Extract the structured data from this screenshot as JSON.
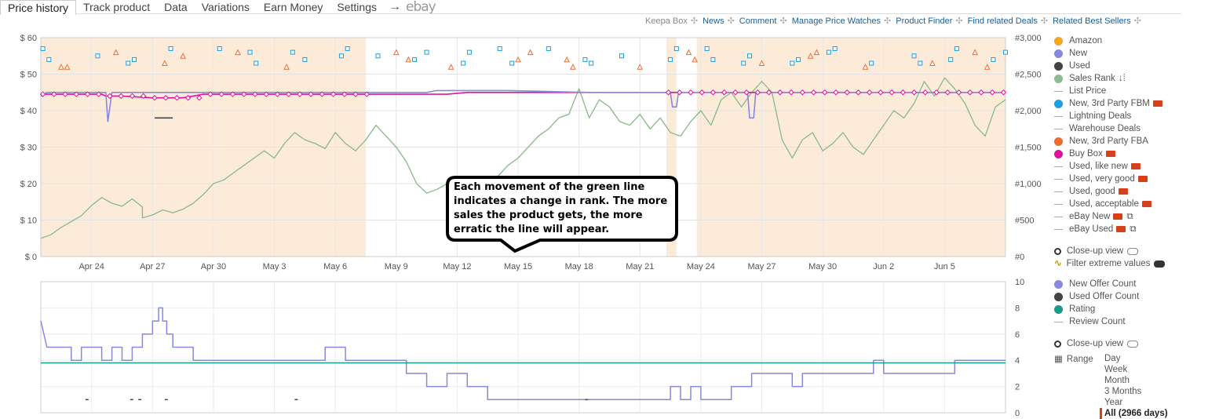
{
  "tabs": [
    {
      "label": "Price history",
      "active": true
    },
    {
      "label": "Track product"
    },
    {
      "label": "Data"
    },
    {
      "label": "Variations"
    },
    {
      "label": "Earn Money"
    },
    {
      "label": "Settings"
    }
  ],
  "tab_arrow": "→",
  "ebay_label": "ebay",
  "toplinks": {
    "keepa_box": "Keepa Box",
    "items": [
      "News",
      "Comment",
      "Manage Price Watches",
      "Product Finder",
      "Find related Deals",
      "Related Best Sellers"
    ]
  },
  "legend_top": [
    {
      "label": "Amazon",
      "type": "dot",
      "color": "#f5a623"
    },
    {
      "label": "New",
      "type": "dot",
      "color": "#8888dd"
    },
    {
      "label": "Used",
      "type": "dot",
      "color": "#444444"
    },
    {
      "label": "Sales Rank",
      "type": "dot",
      "color": "#8fbc8f",
      "suffix": "↓⁞"
    },
    {
      "label": "List Price",
      "type": "dash"
    },
    {
      "label": "New, 3rd Party FBM",
      "type": "dot",
      "color": "#1a9fe0",
      "truck": true
    },
    {
      "label": "Lightning Deals",
      "type": "dash"
    },
    {
      "label": "Warehouse Deals",
      "type": "dash"
    },
    {
      "label": "New, 3rd Party FBA",
      "type": "dot",
      "color": "#f26b2e"
    },
    {
      "label": "Buy Box",
      "type": "dot",
      "color": "#e0139c",
      "truck": true
    },
    {
      "label": "Used, like new",
      "type": "dash",
      "truck": true
    },
    {
      "label": "Used, very good",
      "type": "dash",
      "truck": true
    },
    {
      "label": "Used, good",
      "type": "dash",
      "truck": true
    },
    {
      "label": "Used, acceptable",
      "type": "dash",
      "truck": true
    },
    {
      "label": "eBay New",
      "type": "dash",
      "truck": true,
      "ext": true
    },
    {
      "label": "eBay Used",
      "type": "dash",
      "truck": true,
      "ext": true
    }
  ],
  "closeup_label": "Close-up view",
  "filter_label": "Filter extreme values",
  "legend_bottom": [
    {
      "label": "New Offer Count",
      "type": "dot",
      "color": "#8888dd"
    },
    {
      "label": "Used Offer Count",
      "type": "dot",
      "color": "#444444"
    },
    {
      "label": "Rating",
      "type": "dot",
      "color": "#179c8b"
    },
    {
      "label": "Review Count",
      "type": "dash"
    }
  ],
  "closeup_label_2": "Close-up view",
  "range": {
    "label": "Range",
    "options": [
      "Day",
      "Week",
      "Month",
      "3 Months",
      "Year",
      "All (2966 days)"
    ],
    "selected": "All (2966 days)"
  },
  "annotation": "Each movement of the green line indicates a change in rank. The more sales the product gets, the more erratic the line will appear.",
  "chart_data": [
    {
      "type": "line",
      "x_ticks": [
        "Apr 24",
        "Apr 27",
        "Apr 30",
        "May 3",
        "May 6",
        "May 9",
        "May 12",
        "May 15",
        "May 18",
        "May 21",
        "May 24",
        "May 27",
        "May 30",
        "Jun 2",
        "Jun 5"
      ],
      "y_left_ticks": [
        "$ 0",
        "$ 10",
        "$ 20",
        "$ 30",
        "$ 40",
        "$ 50",
        "$ 60"
      ],
      "y_right_ticks": [
        "#0",
        "#500",
        "#1,000",
        "#1,500",
        "#2,000",
        "#2,500",
        "#3,000"
      ],
      "ylim_left": [
        0,
        60
      ],
      "ylim_right": [
        0,
        3000
      ],
      "x_range_days": [
        0,
        47.5
      ],
      "series": [
        {
          "name": "Sales Rank",
          "color": "#8fbc8f",
          "axis": "right",
          "points": [
            [
              0,
              250
            ],
            [
              0.5,
              300
            ],
            [
              1,
              400
            ],
            [
              1.5,
              480
            ],
            [
              2,
              560
            ],
            [
              2.5,
              700
            ],
            [
              3,
              810
            ],
            [
              3.5,
              730
            ],
            [
              4,
              690
            ],
            [
              4.5,
              790
            ],
            [
              5,
              680
            ],
            [
              5,
              530
            ],
            [
              5.5,
              570
            ],
            [
              6,
              640
            ],
            [
              6.5,
              600
            ],
            [
              7,
              650
            ],
            [
              7.5,
              730
            ],
            [
              8,
              850
            ],
            [
              8.5,
              1000
            ],
            [
              9,
              1050
            ],
            [
              9.5,
              1150
            ],
            [
              10,
              1250
            ],
            [
              10.5,
              1350
            ],
            [
              11,
              1450
            ],
            [
              11.5,
              1350
            ],
            [
              12,
              1550
            ],
            [
              12.5,
              1700
            ],
            [
              13,
              1600
            ],
            [
              13.5,
              1550
            ],
            [
              14,
              1480
            ],
            [
              14.5,
              1700
            ],
            [
              15,
              1550
            ],
            [
              15.5,
              1450
            ],
            [
              16,
              1600
            ],
            [
              16.5,
              1800
            ],
            [
              17,
              1650
            ],
            [
              17.5,
              1500
            ],
            [
              18,
              1300
            ],
            [
              18.5,
              1000
            ],
            [
              19,
              870
            ],
            [
              19.5,
              920
            ],
            [
              20,
              1000
            ],
            [
              20.5,
              870
            ],
            [
              21,
              950
            ],
            [
              21.5,
              1000
            ],
            [
              22,
              960
            ],
            [
              22.5,
              1100
            ],
            [
              23,
              1250
            ],
            [
              23.5,
              1350
            ],
            [
              24,
              1500
            ],
            [
              24.5,
              1650
            ],
            [
              25,
              1750
            ],
            [
              25.5,
              1900
            ],
            [
              26,
              1950
            ],
            [
              26.5,
              2300
            ],
            [
              27,
              1900
            ],
            [
              27.5,
              2150
            ],
            [
              28,
              2050
            ],
            [
              28.5,
              1850
            ],
            [
              29,
              1800
            ],
            [
              29.5,
              1950
            ],
            [
              30,
              1750
            ],
            [
              30.5,
              1900
            ],
            [
              31,
              1700
            ],
            [
              31.5,
              1650
            ],
            [
              32,
              1850
            ],
            [
              32.5,
              2000
            ],
            [
              33,
              1800
            ],
            [
              33.5,
              2150
            ],
            [
              34,
              2250
            ],
            [
              34.5,
              2050
            ],
            [
              35,
              2250
            ],
            [
              35.5,
              2400
            ],
            [
              36,
              2250
            ],
            [
              36.5,
              1600
            ],
            [
              37,
              1350
            ],
            [
              37.5,
              1600
            ],
            [
              38,
              1700
            ],
            [
              38.5,
              1450
            ],
            [
              39,
              1550
            ],
            [
              39.5,
              1700
            ],
            [
              40,
              1500
            ],
            [
              40.5,
              1400
            ],
            [
              41,
              1600
            ],
            [
              41.5,
              1800
            ],
            [
              42,
              2000
            ],
            [
              42.5,
              1900
            ],
            [
              43,
              2100
            ],
            [
              43.5,
              2400
            ],
            [
              44,
              2200
            ],
            [
              44.5,
              2450
            ],
            [
              45,
              2300
            ],
            [
              45.5,
              2100
            ],
            [
              46,
              1800
            ],
            [
              46.5,
              1650
            ],
            [
              47,
              2050
            ],
            [
              47.5,
              2150
            ]
          ]
        },
        {
          "name": "Buy Box",
          "color": "#e0139c",
          "axis": "left",
          "points": [
            [
              0,
              44.5
            ],
            [
              3,
              44.5
            ],
            [
              3.2,
              44
            ],
            [
              4,
              44
            ],
            [
              5.5,
              43.5
            ],
            [
              7,
              43.5
            ],
            [
              8,
              44.5
            ],
            [
              20,
              44.5
            ],
            [
              21,
              45
            ],
            [
              47.5,
              45
            ]
          ]
        },
        {
          "name": "New",
          "color": "#8888dd",
          "axis": "left",
          "points": [
            [
              0,
              44
            ],
            [
              0.3,
              45
            ],
            [
              3.2,
              45
            ],
            [
              3.3,
              37
            ],
            [
              3.5,
              45
            ],
            [
              19,
              45
            ],
            [
              19.5,
              45.5
            ],
            [
              23,
              45.5
            ],
            [
              27,
              45
            ],
            [
              31,
              45
            ],
            [
              31.1,
              41
            ],
            [
              31.3,
              41
            ],
            [
              31.4,
              45
            ],
            [
              34.8,
              45
            ],
            [
              34.9,
              38
            ],
            [
              35.1,
              38
            ],
            [
              35.2,
              45
            ],
            [
              47.5,
              45
            ]
          ]
        },
        {
          "name": "Used",
          "color": "#444444",
          "axis": "left",
          "points": [
            [
              5.6,
              38
            ],
            [
              6.5,
              38
            ]
          ]
        }
      ]
    },
    {
      "type": "line",
      "ylim": [
        0,
        10
      ],
      "y_ticks": [
        "0",
        "2",
        "4",
        "6",
        "8",
        "10"
      ],
      "series": [
        {
          "name": "New Offer Count",
          "color": "#8888dd",
          "points": [
            [
              0,
              7
            ],
            [
              0.3,
              5
            ],
            [
              1.5,
              5
            ],
            [
              1.5,
              4
            ],
            [
              2,
              4
            ],
            [
              2,
              5
            ],
            [
              3,
              5
            ],
            [
              3,
              4
            ],
            [
              3.5,
              4
            ],
            [
              3.5,
              5
            ],
            [
              4,
              5
            ],
            [
              4,
              4
            ],
            [
              4.5,
              4
            ],
            [
              4.5,
              5
            ],
            [
              5,
              5
            ],
            [
              5,
              6
            ],
            [
              5.5,
              6
            ],
            [
              5.5,
              7
            ],
            [
              5.8,
              7
            ],
            [
              5.8,
              8
            ],
            [
              6,
              8
            ],
            [
              6,
              7
            ],
            [
              6.2,
              7
            ],
            [
              6.2,
              6
            ],
            [
              6.5,
              6
            ],
            [
              6.5,
              5
            ],
            [
              7,
              5
            ],
            [
              7.5,
              5
            ],
            [
              7.5,
              4
            ],
            [
              14,
              4
            ],
            [
              14,
              5
            ],
            [
              15,
              5
            ],
            [
              15,
              4
            ],
            [
              18,
              4
            ],
            [
              18,
              3
            ],
            [
              19,
              3
            ],
            [
              19,
              2
            ],
            [
              20,
              2
            ],
            [
              20,
              3
            ],
            [
              21,
              3
            ],
            [
              21,
              2
            ],
            [
              22,
              2
            ],
            [
              22,
              1
            ],
            [
              28,
              1
            ],
            [
              31,
              1
            ],
            [
              31,
              2
            ],
            [
              31.5,
              2
            ],
            [
              31.5,
              1
            ],
            [
              32,
              1
            ],
            [
              32,
              2
            ],
            [
              32.5,
              2
            ],
            [
              32.5,
              1
            ],
            [
              34,
              1
            ],
            [
              34,
              2
            ],
            [
              35,
              2
            ],
            [
              35,
              3
            ],
            [
              36,
              3
            ],
            [
              37,
              3
            ],
            [
              37,
              2
            ],
            [
              37.5,
              2
            ],
            [
              37.5,
              3
            ],
            [
              38,
              3
            ],
            [
              38,
              3
            ],
            [
              38.5,
              3
            ],
            [
              38.5,
              3
            ],
            [
              39,
              3
            ],
            [
              41,
              3
            ],
            [
              41,
              4
            ],
            [
              41.5,
              4
            ],
            [
              41.5,
              3
            ],
            [
              45,
              3
            ],
            [
              45,
              4
            ],
            [
              47.5,
              4
            ]
          ]
        },
        {
          "name": "Rating",
          "color": "#179c8b",
          "points": [
            [
              0,
              3.8
            ],
            [
              47.5,
              3.8
            ]
          ]
        }
      ]
    }
  ]
}
